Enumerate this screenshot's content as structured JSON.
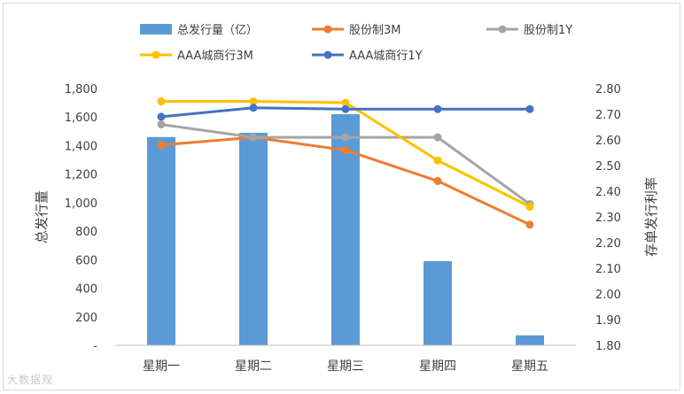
{
  "chart_data": {
    "type": "bar+line",
    "categories": [
      "星期一",
      "星期二",
      "星期三",
      "星期四",
      "星期五"
    ],
    "bar_series": {
      "name": "总发行量（亿）",
      "color": "#5b9bd5",
      "values": [
        1460,
        1490,
        1620,
        590,
        70
      ]
    },
    "line_series": [
      {
        "name": "股份制3M",
        "color": "#ed7d31",
        "values": [
          2.58,
          2.61,
          2.56,
          2.44,
          2.27
        ]
      },
      {
        "name": "股份制1Y",
        "color": "#a5a5a5",
        "values": [
          2.66,
          2.61,
          2.61,
          2.61,
          2.35
        ]
      },
      {
        "name": "AAA城商行3M",
        "color": "#ffc000",
        "values": [
          2.75,
          2.75,
          2.745,
          2.52,
          2.34
        ]
      },
      {
        "name": "AAA城商行1Y",
        "color": "#4472c4",
        "values": [
          2.69,
          2.725,
          2.72,
          2.72,
          2.72
        ]
      }
    ],
    "y_left": {
      "label": "总发行量",
      "ylim": [
        0,
        1800
      ],
      "ticks": [
        "-",
        "200",
        "400",
        "600",
        "800",
        "1,000",
        "1,200",
        "1,400",
        "1,600",
        "1,800"
      ]
    },
    "y_right": {
      "label": "存单发行利率",
      "ylim": [
        1.8,
        2.8
      ],
      "ticks": [
        "1.80",
        "1.90",
        "2.00",
        "2.10",
        "2.20",
        "2.30",
        "2.40",
        "2.50",
        "2.60",
        "2.70",
        "2.80"
      ]
    },
    "grid": false,
    "legend_position": "top"
  },
  "watermark": "大数据观"
}
